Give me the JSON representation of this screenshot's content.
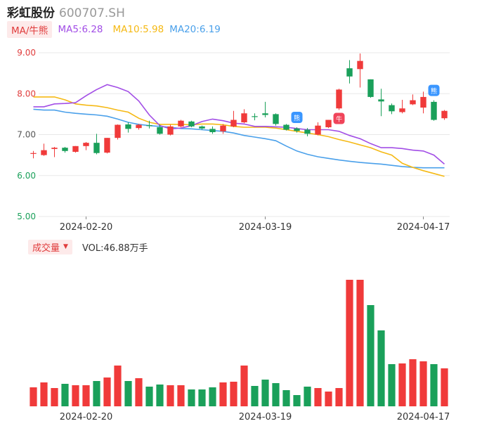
{
  "header": {
    "name": "彩虹股份",
    "code": "600707.SH"
  },
  "ma_legend": {
    "tag": "MA/牛熊",
    "items": [
      {
        "label": "MA5:6.28",
        "color": "#a24ee6"
      },
      {
        "label": "MA10:5.98",
        "color": "#f5b914"
      },
      {
        "label": "MA20:6.19",
        "color": "#4aa0ea"
      }
    ]
  },
  "volume_legend": {
    "tag": "成交量",
    "caret": "▼",
    "text": "VOL:46.88万手"
  },
  "colors": {
    "up": "#f03a3a",
    "down": "#1aa05a",
    "grid": "#e8e8e8"
  },
  "chart_data": [
    {
      "type": "candlestick",
      "ylim": [
        5.0,
        9.0
      ],
      "yticks": [
        "9.00",
        "8.00",
        "7.00",
        "6.00",
        "5.00"
      ],
      "xticks": [
        {
          "label": "2024-02-20",
          "index": 5
        },
        {
          "label": "2024-03-19",
          "index": 22
        },
        {
          "label": "2024-04-17",
          "index": 37
        }
      ],
      "candles": [
        {
          "o": 6.55,
          "h": 6.6,
          "l": 6.42,
          "c": 6.55
        },
        {
          "o": 6.5,
          "h": 6.78,
          "l": 6.48,
          "c": 6.62
        },
        {
          "o": 6.65,
          "h": 6.7,
          "l": 6.45,
          "c": 6.68
        },
        {
          "o": 6.68,
          "h": 6.7,
          "l": 6.56,
          "c": 6.6
        },
        {
          "o": 6.58,
          "h": 6.72,
          "l": 6.56,
          "c": 6.72
        },
        {
          "o": 6.72,
          "h": 6.82,
          "l": 6.62,
          "c": 6.8
        },
        {
          "o": 6.8,
          "h": 7.02,
          "l": 6.52,
          "c": 6.55
        },
        {
          "o": 6.56,
          "h": 6.92,
          "l": 6.54,
          "c": 6.92
        },
        {
          "o": 6.92,
          "h": 7.25,
          "l": 6.88,
          "c": 7.24
        },
        {
          "o": 7.25,
          "h": 7.3,
          "l": 7.05,
          "c": 7.14
        },
        {
          "o": 7.16,
          "h": 7.26,
          "l": 7.12,
          "c": 7.24
        },
        {
          "o": 7.23,
          "h": 7.34,
          "l": 7.15,
          "c": 7.22
        },
        {
          "o": 7.18,
          "h": 7.24,
          "l": 7.0,
          "c": 7.02
        },
        {
          "o": 7.0,
          "h": 7.24,
          "l": 6.98,
          "c": 7.2
        },
        {
          "o": 7.2,
          "h": 7.36,
          "l": 7.18,
          "c": 7.34
        },
        {
          "o": 7.32,
          "h": 7.34,
          "l": 7.18,
          "c": 7.2
        },
        {
          "o": 7.2,
          "h": 7.22,
          "l": 7.12,
          "c": 7.15
        },
        {
          "o": 7.14,
          "h": 7.2,
          "l": 7.02,
          "c": 7.06
        },
        {
          "o": 7.08,
          "h": 7.26,
          "l": 7.02,
          "c": 7.22
        },
        {
          "o": 7.2,
          "h": 7.58,
          "l": 7.18,
          "c": 7.36
        },
        {
          "o": 7.3,
          "h": 7.62,
          "l": 7.28,
          "c": 7.52
        },
        {
          "o": 7.45,
          "h": 7.52,
          "l": 7.35,
          "c": 7.43
        },
        {
          "o": 7.52,
          "h": 7.8,
          "l": 7.42,
          "c": 7.48
        },
        {
          "o": 7.5,
          "h": 7.52,
          "l": 7.22,
          "c": 7.26
        },
        {
          "o": 7.24,
          "h": 7.26,
          "l": 7.1,
          "c": 7.12
        },
        {
          "o": 7.15,
          "h": 7.18,
          "l": 7.05,
          "c": 7.09
        },
        {
          "o": 7.12,
          "h": 7.16,
          "l": 6.96,
          "c": 7.02
        },
        {
          "o": 7.0,
          "h": 7.3,
          "l": 6.98,
          "c": 7.22
        },
        {
          "o": 7.18,
          "h": 7.36,
          "l": 7.16,
          "c": 7.36
        },
        {
          "o": 7.64,
          "h": 8.12,
          "l": 7.6,
          "c": 8.1
        },
        {
          "o": 8.62,
          "h": 8.82,
          "l": 8.25,
          "c": 8.42
        },
        {
          "o": 8.6,
          "h": 8.98,
          "l": 8.15,
          "c": 8.8
        },
        {
          "o": 8.35,
          "h": 8.35,
          "l": 7.9,
          "c": 7.92
        },
        {
          "o": 7.86,
          "h": 8.12,
          "l": 7.45,
          "c": 7.81
        },
        {
          "o": 7.72,
          "h": 7.76,
          "l": 7.5,
          "c": 7.57
        },
        {
          "o": 7.55,
          "h": 7.85,
          "l": 7.52,
          "c": 7.64
        },
        {
          "o": 7.74,
          "h": 7.98,
          "l": 7.72,
          "c": 7.84
        },
        {
          "o": 7.66,
          "h": 8.05,
          "l": 7.52,
          "c": 7.92
        },
        {
          "o": 7.8,
          "h": 7.84,
          "l": 7.34,
          "c": 7.36
        },
        {
          "o": 7.4,
          "h": 7.6,
          "l": 7.36,
          "c": 7.58
        }
      ],
      "ma5": [
        7.68,
        7.68,
        7.75,
        7.76,
        7.78,
        7.95,
        8.1,
        8.22,
        8.15,
        8.05,
        7.82,
        7.48,
        7.22,
        7.14,
        7.16,
        7.22,
        7.32,
        7.38,
        7.34,
        7.28,
        7.26,
        7.2,
        7.2,
        7.19,
        7.18,
        7.15,
        7.12,
        7.12,
        7.12,
        7.08,
        6.98,
        6.9,
        6.78,
        6.68,
        6.68,
        6.66,
        6.62,
        6.6,
        6.5,
        6.28
      ],
      "ma10": [
        7.92,
        7.92,
        7.92,
        7.85,
        7.75,
        7.72,
        7.7,
        7.66,
        7.6,
        7.55,
        7.4,
        7.3,
        7.25,
        7.25,
        7.25,
        7.24,
        7.26,
        7.26,
        7.24,
        7.2,
        7.18,
        7.18,
        7.18,
        7.16,
        7.12,
        7.08,
        7.04,
        7.0,
        6.95,
        6.88,
        6.82,
        6.75,
        6.68,
        6.58,
        6.5,
        6.3,
        6.2,
        6.12,
        6.05,
        5.98
      ],
      "ma20": [
        7.62,
        7.6,
        7.6,
        7.55,
        7.52,
        7.5,
        7.48,
        7.45,
        7.38,
        7.3,
        7.25,
        7.22,
        7.2,
        7.18,
        7.15,
        7.14,
        7.12,
        7.1,
        7.08,
        7.04,
        6.98,
        6.94,
        6.9,
        6.85,
        6.72,
        6.6,
        6.52,
        6.46,
        6.42,
        6.38,
        6.35,
        6.32,
        6.3,
        6.28,
        6.25,
        6.22,
        6.2,
        6.19,
        6.19,
        6.19
      ],
      "markers": [
        {
          "index": 25,
          "glyph": "熊",
          "color": "#3a96ff"
        },
        {
          "index": 29,
          "glyph": "牛",
          "color": "#f0445a"
        },
        {
          "index": 38,
          "glyph": "熊",
          "color": "#3a96ff"
        }
      ]
    },
    {
      "type": "bar",
      "name": "成交量",
      "ylim": [
        0,
        180
      ],
      "values": [
        27,
        34,
        26,
        32,
        30,
        30,
        36,
        41,
        58,
        36,
        40,
        28,
        31,
        30,
        30,
        24,
        24,
        27,
        34,
        35,
        58,
        29,
        38,
        33,
        23,
        16,
        28,
        26,
        21,
        26,
        180,
        180,
        144,
        108,
        60,
        61,
        67,
        64,
        60,
        54
      ],
      "up": [
        true,
        true,
        true,
        false,
        true,
        true,
        false,
        true,
        true,
        false,
        true,
        false,
        false,
        true,
        true,
        false,
        false,
        false,
        true,
        true,
        true,
        false,
        false,
        false,
        false,
        false,
        false,
        true,
        true,
        true,
        true,
        true,
        false,
        false,
        false,
        true,
        true,
        true,
        false,
        true
      ]
    }
  ]
}
